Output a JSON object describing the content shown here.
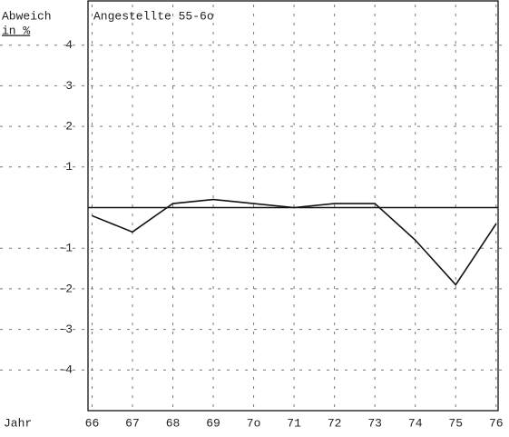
{
  "chart_data": {
    "type": "line",
    "title": "Angestellte 55-6o",
    "y_label_line1": "Abweich",
    "y_label_line2": "in %",
    "x_label": "Jahr",
    "x": [
      66,
      67,
      68,
      69,
      70,
      71,
      72,
      73,
      74,
      75,
      76
    ],
    "series": [
      {
        "name": "Angestellte 55-6o",
        "color": "#111111",
        "values": [
          -0.2,
          -0.6,
          0.1,
          0.2,
          0.1,
          0,
          0.1,
          0.1,
          -0.8,
          -1.9,
          -0.4
        ]
      }
    ],
    "xlim": [
      65.9,
      76.05
    ],
    "xticks": [
      66,
      67,
      68,
      69,
      {
        "value": 70,
        "label": "7o"
      },
      71,
      72,
      73,
      74,
      75,
      76
    ],
    "ylim": [
      -5,
      5
    ],
    "yticks": [
      -4,
      -3,
      -2,
      -1,
      1,
      2,
      3,
      4
    ],
    "grid": true
  }
}
